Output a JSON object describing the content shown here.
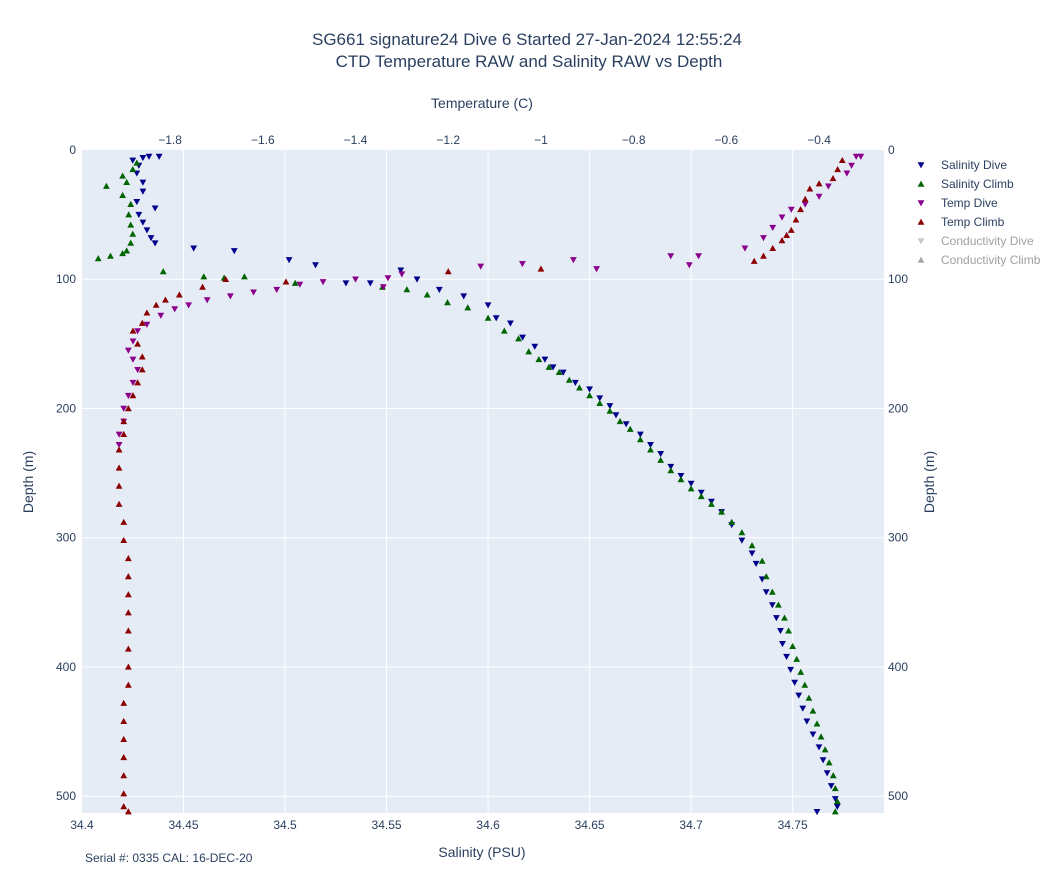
{
  "chart_data": {
    "type": "scatter",
    "title_line1": "SG661 signature24 Dive 6 Started 27-Jan-2024 12:55:24",
    "title_line2": "CTD Temperature RAW and Salinity RAW vs Depth",
    "xlabel_bottom": "Salinity (PSU)",
    "xlabel_top": "Temperature (C)",
    "ylabel_left": "Depth (m)",
    "ylabel_right": "Depth (m)",
    "salinity_range": [
      34.4,
      34.795
    ],
    "temperature_range": [
      -1.99,
      -0.26
    ],
    "depth_range": [
      0,
      513
    ],
    "salinity_ticks": [
      "34.4",
      "34.45",
      "34.5",
      "34.55",
      "34.6",
      "34.65",
      "34.7",
      "34.75"
    ],
    "temperature_ticks": [
      "−1.8",
      "−1.6",
      "−1.4",
      "−1.2",
      "−1",
      "−0.8",
      "−0.6",
      "−0.4"
    ],
    "depth_ticks": [
      "0",
      "100",
      "200",
      "300",
      "400",
      "500"
    ],
    "grid": true,
    "legend_position": "right",
    "footnote": "Serial #: 0335  CAL: 16-DEC-20",
    "series": [
      {
        "name": "Salinity Dive",
        "color": "#00008b",
        "marker": "triangle-down",
        "axis": "salinity",
        "visible": true,
        "points": [
          [
            34.433,
            5
          ],
          [
            34.438,
            5
          ],
          [
            34.43,
            6
          ],
          [
            34.425,
            8
          ],
          [
            34.428,
            12
          ],
          [
            34.427,
            18
          ],
          [
            34.43,
            25
          ],
          [
            34.43,
            32
          ],
          [
            34.427,
            40
          ],
          [
            34.436,
            45
          ],
          [
            34.428,
            50
          ],
          [
            34.43,
            56
          ],
          [
            34.432,
            62
          ],
          [
            34.434,
            68
          ],
          [
            34.436,
            72
          ],
          [
            34.455,
            76
          ],
          [
            34.475,
            78
          ],
          [
            34.502,
            85
          ],
          [
            34.515,
            89
          ],
          [
            34.53,
            103
          ],
          [
            34.542,
            103
          ],
          [
            34.557,
            93
          ],
          [
            34.565,
            100
          ],
          [
            34.576,
            108
          ],
          [
            34.588,
            113
          ],
          [
            34.6,
            120
          ],
          [
            34.604,
            130
          ],
          [
            34.611,
            134
          ],
          [
            34.617,
            145
          ],
          [
            34.623,
            152
          ],
          [
            34.628,
            162
          ],
          [
            34.632,
            168
          ],
          [
            34.637,
            172
          ],
          [
            34.643,
            180
          ],
          [
            34.65,
            185
          ],
          [
            34.655,
            192
          ],
          [
            34.66,
            198
          ],
          [
            34.663,
            205
          ],
          [
            34.668,
            212
          ],
          [
            34.675,
            220
          ],
          [
            34.68,
            228
          ],
          [
            34.685,
            235
          ],
          [
            34.69,
            245
          ],
          [
            34.695,
            252
          ],
          [
            34.7,
            258
          ],
          [
            34.705,
            265
          ],
          [
            34.71,
            272
          ],
          [
            34.715,
            280
          ],
          [
            34.72,
            290
          ],
          [
            34.725,
            302
          ],
          [
            34.73,
            312
          ],
          [
            34.732,
            320
          ],
          [
            34.735,
            332
          ],
          [
            34.737,
            342
          ],
          [
            34.74,
            352
          ],
          [
            34.742,
            362
          ],
          [
            34.744,
            372
          ],
          [
            34.745,
            382
          ],
          [
            34.747,
            392
          ],
          [
            34.749,
            402
          ],
          [
            34.751,
            412
          ],
          [
            34.753,
            422
          ],
          [
            34.755,
            432
          ],
          [
            34.757,
            442
          ],
          [
            34.76,
            452
          ],
          [
            34.763,
            462
          ],
          [
            34.765,
            472
          ],
          [
            34.767,
            482
          ],
          [
            34.769,
            492
          ],
          [
            34.771,
            502
          ],
          [
            34.772,
            508
          ],
          [
            34.762,
            512
          ]
        ]
      },
      {
        "name": "Salinity Climb",
        "color": "#006400",
        "marker": "triangle-up",
        "axis": "salinity",
        "visible": true,
        "points": [
          [
            34.412,
            28
          ],
          [
            34.42,
            20
          ],
          [
            34.422,
            25
          ],
          [
            34.425,
            15
          ],
          [
            34.427,
            10
          ],
          [
            34.42,
            35
          ],
          [
            34.424,
            42
          ],
          [
            34.423,
            50
          ],
          [
            34.424,
            58
          ],
          [
            34.425,
            65
          ],
          [
            34.424,
            72
          ],
          [
            34.422,
            78
          ],
          [
            34.42,
            80
          ],
          [
            34.414,
            82
          ],
          [
            34.408,
            84
          ],
          [
            34.44,
            94
          ],
          [
            34.46,
            98
          ],
          [
            34.47,
            99
          ],
          [
            34.48,
            98
          ],
          [
            34.505,
            103
          ],
          [
            34.548,
            106
          ],
          [
            34.56,
            108
          ],
          [
            34.57,
            112
          ],
          [
            34.58,
            118
          ],
          [
            34.59,
            122
          ],
          [
            34.6,
            130
          ],
          [
            34.608,
            140
          ],
          [
            34.615,
            146
          ],
          [
            34.62,
            156
          ],
          [
            34.625,
            162
          ],
          [
            34.63,
            168
          ],
          [
            34.635,
            172
          ],
          [
            34.64,
            178
          ],
          [
            34.645,
            184
          ],
          [
            34.65,
            190
          ],
          [
            34.655,
            196
          ],
          [
            34.66,
            202
          ],
          [
            34.665,
            210
          ],
          [
            34.67,
            216
          ],
          [
            34.675,
            224
          ],
          [
            34.68,
            232
          ],
          [
            34.685,
            240
          ],
          [
            34.69,
            248
          ],
          [
            34.695,
            255
          ],
          [
            34.7,
            262
          ],
          [
            34.705,
            268
          ],
          [
            34.71,
            274
          ],
          [
            34.715,
            280
          ],
          [
            34.72,
            288
          ],
          [
            34.725,
            296
          ],
          [
            34.73,
            306
          ],
          [
            34.735,
            318
          ],
          [
            34.737,
            330
          ],
          [
            34.74,
            342
          ],
          [
            34.743,
            352
          ],
          [
            34.746,
            362
          ],
          [
            34.748,
            372
          ],
          [
            34.75,
            384
          ],
          [
            34.752,
            394
          ],
          [
            34.754,
            404
          ],
          [
            34.756,
            414
          ],
          [
            34.758,
            424
          ],
          [
            34.76,
            434
          ],
          [
            34.762,
            444
          ],
          [
            34.764,
            454
          ],
          [
            34.766,
            464
          ],
          [
            34.768,
            474
          ],
          [
            34.77,
            484
          ],
          [
            34.771,
            494
          ],
          [
            34.772,
            504
          ],
          [
            34.771,
            512
          ]
        ]
      },
      {
        "name": "Temp Dive",
        "color": "#8b008b",
        "marker": "triangle-down",
        "axis": "temperature",
        "visible": true,
        "points": [
          [
            -0.31,
            5
          ],
          [
            -0.32,
            5
          ],
          [
            -0.33,
            12
          ],
          [
            -0.34,
            18
          ],
          [
            -0.38,
            28
          ],
          [
            -0.4,
            36
          ],
          [
            -0.43,
            42
          ],
          [
            -0.46,
            46
          ],
          [
            -0.48,
            52
          ],
          [
            -0.5,
            60
          ],
          [
            -0.52,
            68
          ],
          [
            -0.56,
            76
          ],
          [
            -0.66,
            82
          ],
          [
            -0.68,
            89
          ],
          [
            -0.72,
            82
          ],
          [
            -0.88,
            92
          ],
          [
            -0.93,
            85
          ],
          [
            -1.04,
            88
          ],
          [
            -1.13,
            90
          ],
          [
            -1.3,
            96
          ],
          [
            -1.33,
            99
          ],
          [
            -1.34,
            106
          ],
          [
            -1.4,
            100
          ],
          [
            -1.47,
            102
          ],
          [
            -1.52,
            104
          ],
          [
            -1.57,
            108
          ],
          [
            -1.62,
            110
          ],
          [
            -1.67,
            113
          ],
          [
            -1.72,
            116
          ],
          [
            -1.76,
            120
          ],
          [
            -1.79,
            123
          ],
          [
            -1.82,
            128
          ],
          [
            -1.85,
            135
          ],
          [
            -1.87,
            140
          ],
          [
            -1.88,
            148
          ],
          [
            -1.89,
            155
          ],
          [
            -1.88,
            162
          ],
          [
            -1.87,
            170
          ],
          [
            -1.88,
            180
          ],
          [
            -1.89,
            190
          ],
          [
            -1.9,
            200
          ],
          [
            -1.9,
            210
          ],
          [
            -1.91,
            220
          ],
          [
            -1.91,
            228
          ]
        ]
      },
      {
        "name": "Temp Climb",
        "color": "#8b0000",
        "marker": "triangle-up",
        "axis": "temperature",
        "visible": true,
        "points": [
          [
            -0.35,
            8
          ],
          [
            -0.36,
            15
          ],
          [
            -0.37,
            22
          ],
          [
            -0.4,
            26
          ],
          [
            -0.42,
            30
          ],
          [
            -0.43,
            38
          ],
          [
            -0.44,
            46
          ],
          [
            -0.45,
            54
          ],
          [
            -0.46,
            62
          ],
          [
            -0.47,
            66
          ],
          [
            -0.48,
            70
          ],
          [
            -0.5,
            76
          ],
          [
            -0.52,
            82
          ],
          [
            -0.54,
            86
          ],
          [
            -1.0,
            92
          ],
          [
            -1.2,
            94
          ],
          [
            -1.55,
            102
          ],
          [
            -1.68,
            100
          ],
          [
            -1.73,
            106
          ],
          [
            -1.78,
            112
          ],
          [
            -1.81,
            116
          ],
          [
            -1.83,
            120
          ],
          [
            -1.85,
            126
          ],
          [
            -1.86,
            134
          ],
          [
            -1.88,
            140
          ],
          [
            -1.87,
            150
          ],
          [
            -1.86,
            160
          ],
          [
            -1.86,
            170
          ],
          [
            -1.87,
            180
          ],
          [
            -1.88,
            190
          ],
          [
            -1.89,
            200
          ],
          [
            -1.9,
            210
          ],
          [
            -1.9,
            220
          ],
          [
            -1.91,
            232
          ],
          [
            -1.91,
            246
          ],
          [
            -1.91,
            260
          ],
          [
            -1.91,
            274
          ],
          [
            -1.9,
            288
          ],
          [
            -1.9,
            302
          ],
          [
            -1.89,
            316
          ],
          [
            -1.89,
            330
          ],
          [
            -1.89,
            344
          ],
          [
            -1.89,
            358
          ],
          [
            -1.89,
            372
          ],
          [
            -1.89,
            386
          ],
          [
            -1.89,
            400
          ],
          [
            -1.89,
            414
          ],
          [
            -1.9,
            428
          ],
          [
            -1.9,
            442
          ],
          [
            -1.9,
            456
          ],
          [
            -1.9,
            470
          ],
          [
            -1.9,
            484
          ],
          [
            -1.9,
            498
          ],
          [
            -1.9,
            508
          ],
          [
            -1.89,
            512
          ]
        ]
      },
      {
        "name": "Conductivity Dive",
        "color": "#c8c8c8",
        "marker": "triangle-down",
        "axis": "none",
        "visible": false,
        "points": []
      },
      {
        "name": "Conductivity Climb",
        "color": "#a8a8a8",
        "marker": "triangle-up",
        "axis": "none",
        "visible": false,
        "points": []
      }
    ]
  }
}
